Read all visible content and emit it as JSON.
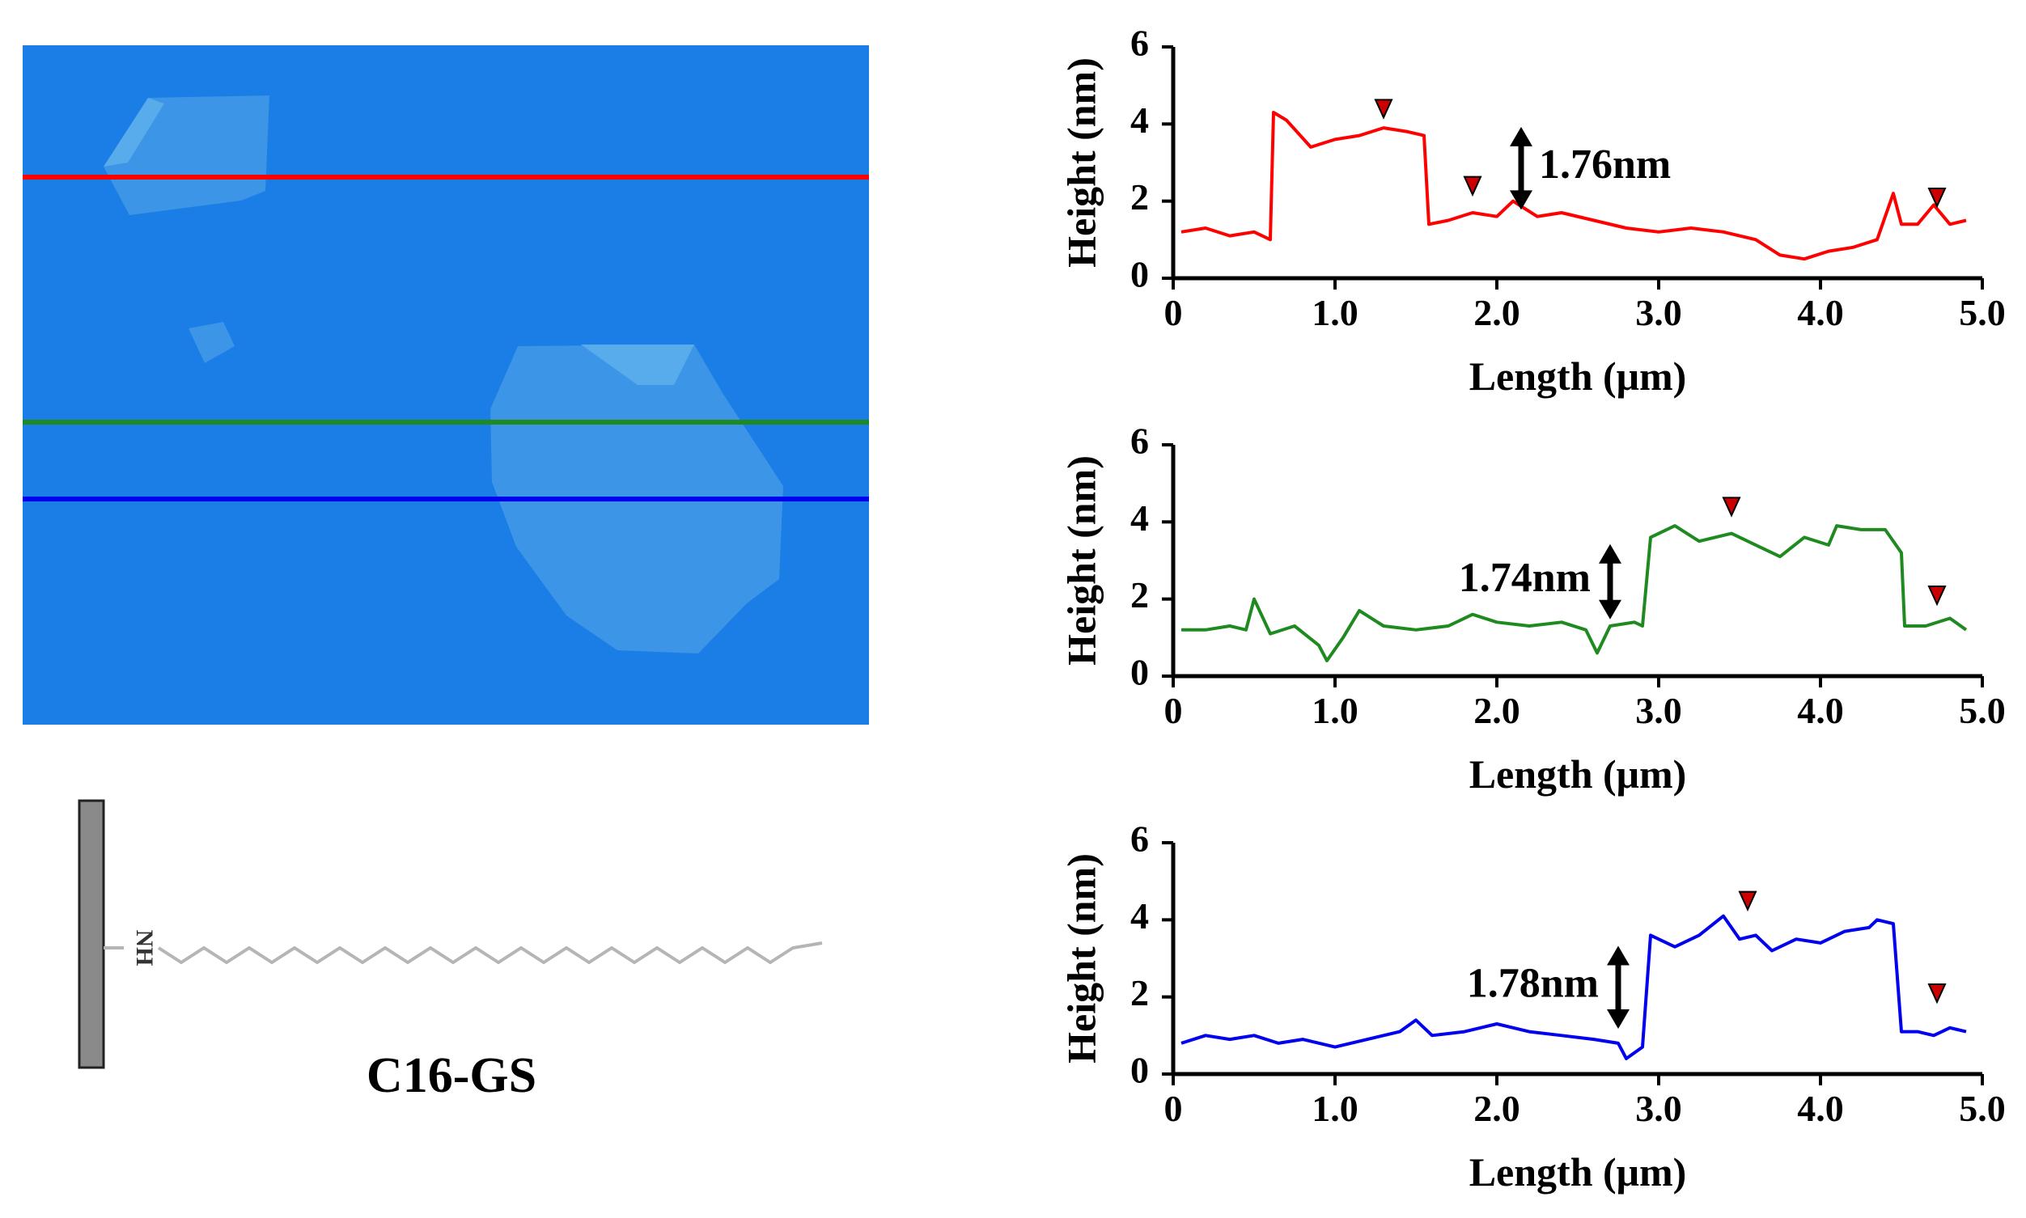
{
  "figure": {
    "molecule_label": "C16-GS",
    "amine_label": "NH"
  },
  "colors": {
    "substrate": "#1a7ee6",
    "flake": "#3c95e6",
    "flake_light": "#58acec",
    "line_red": "#ff0000",
    "line_green": "#1f8a1f",
    "line_blue": "#0000ee",
    "marker": "#cc0000"
  },
  "chart_data": [
    {
      "type": "line",
      "series_name": "red profile",
      "color": "#ff0000",
      "xlabel": "Length (μm)",
      "ylabel": "Height (nm)",
      "xlim": [
        0,
        5.0
      ],
      "ylim": [
        0,
        6
      ],
      "xticks": [
        "0",
        "1.0",
        "2.0",
        "3.0",
        "4.0",
        "5.0"
      ],
      "yticks": [
        "0",
        "2",
        "4",
        "6"
      ],
      "annotation": "1.76nm",
      "markers": [
        [
          1.3,
          4.0
        ],
        [
          1.85,
          2.0
        ],
        [
          4.72,
          1.7
        ]
      ],
      "x": [
        0.05,
        0.2,
        0.35,
        0.5,
        0.6,
        0.62,
        0.7,
        0.85,
        1.0,
        1.15,
        1.3,
        1.45,
        1.55,
        1.58,
        1.7,
        1.85,
        2.0,
        2.1,
        2.25,
        2.4,
        2.6,
        2.8,
        3.0,
        3.2,
        3.4,
        3.6,
        3.75,
        3.9,
        4.05,
        4.2,
        4.35,
        4.45,
        4.5,
        4.6,
        4.7,
        4.8,
        4.9
      ],
      "y": [
        1.2,
        1.3,
        1.1,
        1.2,
        1.0,
        4.3,
        4.1,
        3.4,
        3.6,
        3.7,
        3.9,
        3.8,
        3.7,
        1.4,
        1.5,
        1.7,
        1.6,
        2.0,
        1.6,
        1.7,
        1.5,
        1.3,
        1.2,
        1.3,
        1.2,
        1.0,
        0.6,
        0.5,
        0.7,
        0.8,
        1.0,
        2.2,
        1.4,
        1.4,
        1.9,
        1.4,
        1.5
      ]
    },
    {
      "type": "line",
      "series_name": "green profile",
      "color": "#1f8a1f",
      "xlabel": "Length (μm)",
      "ylabel": "Height (nm)",
      "xlim": [
        0,
        5.0
      ],
      "ylim": [
        0,
        6
      ],
      "xticks": [
        "0",
        "1.0",
        "2.0",
        "3.0",
        "4.0",
        "5.0"
      ],
      "yticks": [
        "0",
        "2",
        "4",
        "6"
      ],
      "annotation": "1.74nm",
      "markers": [
        [
          3.45,
          4.0
        ],
        [
          4.72,
          1.7
        ]
      ],
      "x": [
        0.05,
        0.2,
        0.35,
        0.45,
        0.5,
        0.6,
        0.75,
        0.9,
        0.95,
        1.05,
        1.15,
        1.3,
        1.5,
        1.7,
        1.85,
        2.0,
        2.2,
        2.4,
        2.55,
        2.62,
        2.7,
        2.85,
        2.9,
        2.95,
        3.1,
        3.25,
        3.45,
        3.6,
        3.75,
        3.9,
        4.05,
        4.1,
        4.25,
        4.4,
        4.5,
        4.52,
        4.65,
        4.8,
        4.9
      ],
      "y": [
        1.2,
        1.2,
        1.3,
        1.2,
        2.0,
        1.1,
        1.3,
        0.8,
        0.4,
        1.0,
        1.7,
        1.3,
        1.2,
        1.3,
        1.6,
        1.4,
        1.3,
        1.4,
        1.2,
        0.6,
        1.3,
        1.4,
        1.3,
        3.6,
        3.9,
        3.5,
        3.7,
        3.4,
        3.1,
        3.6,
        3.4,
        3.9,
        3.8,
        3.8,
        3.2,
        1.3,
        1.3,
        1.5,
        1.2
      ]
    },
    {
      "type": "line",
      "series_name": "blue profile",
      "color": "#0000ee",
      "xlabel": "Length (μm)",
      "ylabel": "Height (nm)",
      "xlim": [
        0,
        5.0
      ],
      "ylim": [
        0,
        6
      ],
      "xticks": [
        "0",
        "1.0",
        "2.0",
        "3.0",
        "4.0",
        "5.0"
      ],
      "yticks": [
        "0",
        "2",
        "4",
        "6"
      ],
      "annotation": "1.78nm",
      "markers": [
        [
          3.55,
          4.1
        ],
        [
          4.72,
          1.7
        ]
      ],
      "x": [
        0.05,
        0.2,
        0.35,
        0.5,
        0.65,
        0.8,
        1.0,
        1.2,
        1.4,
        1.5,
        1.6,
        1.8,
        2.0,
        2.2,
        2.4,
        2.6,
        2.75,
        2.8,
        2.9,
        2.95,
        3.1,
        3.25,
        3.4,
        3.5,
        3.6,
        3.7,
        3.85,
        4.0,
        4.15,
        4.3,
        4.35,
        4.45,
        4.5,
        4.6,
        4.7,
        4.8,
        4.9
      ],
      "y": [
        0.8,
        1.0,
        0.9,
        1.0,
        0.8,
        0.9,
        0.7,
        0.9,
        1.1,
        1.4,
        1.0,
        1.1,
        1.3,
        1.1,
        1.0,
        0.9,
        0.8,
        0.4,
        0.7,
        3.6,
        3.3,
        3.6,
        4.1,
        3.5,
        3.6,
        3.2,
        3.5,
        3.4,
        3.7,
        3.8,
        4.0,
        3.9,
        1.1,
        1.1,
        1.0,
        1.2,
        1.1
      ]
    }
  ]
}
